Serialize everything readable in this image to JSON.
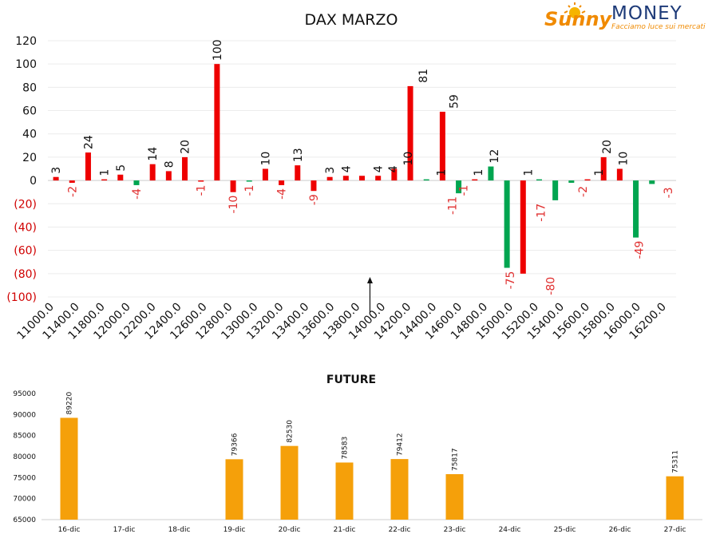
{
  "logo": {
    "brand_script": "Sunny",
    "brand_caps": "MONEY",
    "tagline": "Facciamo luce sui mercati"
  },
  "colors": {
    "call_red": "#ee0000",
    "put_green": "#00a550",
    "negative_label": "#e03030",
    "future_orange": "#f5a00a"
  },
  "chart_data": [
    {
      "type": "bar",
      "title": "DAX MARZO",
      "xlabel": "",
      "ylabel": "",
      "ylim": [
        -100,
        120
      ],
      "yticks": [
        {
          "value": 120,
          "label": "120"
        },
        {
          "value": 100,
          "label": "100"
        },
        {
          "value": 80,
          "label": "80"
        },
        {
          "value": 60,
          "label": "60"
        },
        {
          "value": 40,
          "label": "40"
        },
        {
          "value": 20,
          "label": "20"
        },
        {
          "value": 0,
          "label": "0"
        },
        {
          "value": -20,
          "label": "(20)"
        },
        {
          "value": -40,
          "label": "(40)"
        },
        {
          "value": -60,
          "label": "(60)"
        },
        {
          "value": -80,
          "label": "(80)"
        },
        {
          "value": -100,
          "label": "(100)"
        }
      ],
      "xticks": [
        "11000.0",
        "11400.0",
        "11800.0",
        "12000.0",
        "12200.0",
        "12400.0",
        "12600.0",
        "12800.0",
        "13000.0",
        "13200.0",
        "13400.0",
        "13600.0",
        "13800.0",
        "14000.0",
        "14200.0",
        "14400.0",
        "14600.0",
        "14800.0",
        "15000.0",
        "15200.0",
        "15400.0",
        "15600.0",
        "15800.0",
        "16000.0",
        "16200.0"
      ],
      "grid": true,
      "arrow_at_category": "14000.0",
      "series": [
        {
          "color": "#ee0000",
          "values": [
            3,
            -2,
            24,
            1,
            5,
            null,
            14,
            8,
            20,
            -1,
            100,
            -10,
            null,
            10,
            -4,
            13,
            -9,
            3,
            4,
            4,
            4,
            10,
            81,
            null,
            59,
            null,
            1,
            null,
            null,
            -80,
            null,
            null,
            null,
            1,
            20,
            10,
            null,
            null,
            null
          ]
        },
        {
          "color": "#00a550",
          "values": [
            null,
            null,
            null,
            null,
            null,
            -4,
            null,
            null,
            null,
            null,
            null,
            null,
            -1,
            null,
            null,
            null,
            null,
            null,
            null,
            null,
            null,
            null,
            null,
            1,
            null,
            -11,
            null,
            12,
            -75,
            null,
            1,
            -17,
            -2,
            null,
            null,
            null,
            -49,
            -3,
            null
          ]
        }
      ],
      "bar_labels": [
        {
          "index": 0,
          "value": 3,
          "text": "3"
        },
        {
          "index": 1,
          "value": -2,
          "text": "-2"
        },
        {
          "index": 2,
          "value": 24,
          "text": "24"
        },
        {
          "index": 3,
          "value": 1,
          "text": "1"
        },
        {
          "index": 4,
          "value": 5,
          "text": "5"
        },
        {
          "index": 5,
          "value": -4,
          "text": "-4"
        },
        {
          "index": 6,
          "value": 14,
          "text": "14"
        },
        {
          "index": 7,
          "value": 8,
          "text": "8"
        },
        {
          "index": 8,
          "value": 20,
          "text": "20"
        },
        {
          "index": 9,
          "value": -1,
          "text": "-1"
        },
        {
          "index": 10,
          "value": 100,
          "text": "100"
        },
        {
          "index": 11,
          "value": -10,
          "text": "-10"
        },
        {
          "index": 12,
          "value": -1,
          "text": "-1"
        },
        {
          "index": 13,
          "value": 10,
          "text": "10"
        },
        {
          "index": 14,
          "value": -4,
          "text": "-4"
        },
        {
          "index": 15,
          "value": 13,
          "text": "13"
        },
        {
          "index": 16,
          "value": -9,
          "text": "-9"
        },
        {
          "index": 17,
          "value": 3,
          "text": "3"
        },
        {
          "index": 18,
          "value": 4,
          "text": "4"
        },
        {
          "index": 20,
          "value": 4,
          "text": "4"
        },
        {
          "index": 20.9,
          "value": 4,
          "text": "4"
        },
        {
          "index": 21.85,
          "value": 10,
          "text": "10"
        },
        {
          "index": 22.8,
          "value": 81,
          "text": "81"
        },
        {
          "index": 23.9,
          "value": 1,
          "text": "1"
        },
        {
          "index": 24.7,
          "value": 59,
          "text": "59"
        },
        {
          "index": 24.6,
          "value": -11,
          "text": "-11"
        },
        {
          "index": 25.3,
          "value": -1,
          "text": "-1"
        },
        {
          "index": 26.2,
          "value": 1,
          "text": "1"
        },
        {
          "index": 27.2,
          "value": 12,
          "text": "12"
        },
        {
          "index": 28.2,
          "value": -75,
          "text": "-75"
        },
        {
          "index": 29.3,
          "value": 1,
          "text": "1"
        },
        {
          "index": 30.1,
          "value": -17,
          "text": "-17"
        },
        {
          "index": 30.7,
          "value": -80,
          "text": "-80"
        },
        {
          "index": 32.7,
          "value": -2,
          "text": "-2"
        },
        {
          "index": 33.7,
          "value": 1,
          "text": "1"
        },
        {
          "index": 34.2,
          "value": 20,
          "text": "20"
        },
        {
          "index": 35.2,
          "value": 10,
          "text": "10"
        },
        {
          "index": 36.2,
          "value": -49,
          "text": "-49"
        },
        {
          "index": 38.0,
          "value": -3,
          "text": "-3"
        }
      ]
    },
    {
      "type": "bar",
      "title": "FUTURE",
      "xlabel": "",
      "ylabel": "",
      "ylim": [
        65000,
        95000
      ],
      "yticks": [
        65000,
        70000,
        75000,
        80000,
        85000,
        90000,
        95000
      ],
      "categories": [
        "16-dic",
        "17-dic",
        "18-dic",
        "19-dic",
        "20-dic",
        "21-dic",
        "22-dic",
        "23-dic",
        "24-dic",
        "25-dic",
        "26-dic",
        "27-dic"
      ],
      "values": [
        89220,
        null,
        null,
        79366,
        82530,
        78583,
        79412,
        75817,
        null,
        null,
        null,
        75311
      ],
      "color": "#f5a00a",
      "grid": false
    }
  ]
}
